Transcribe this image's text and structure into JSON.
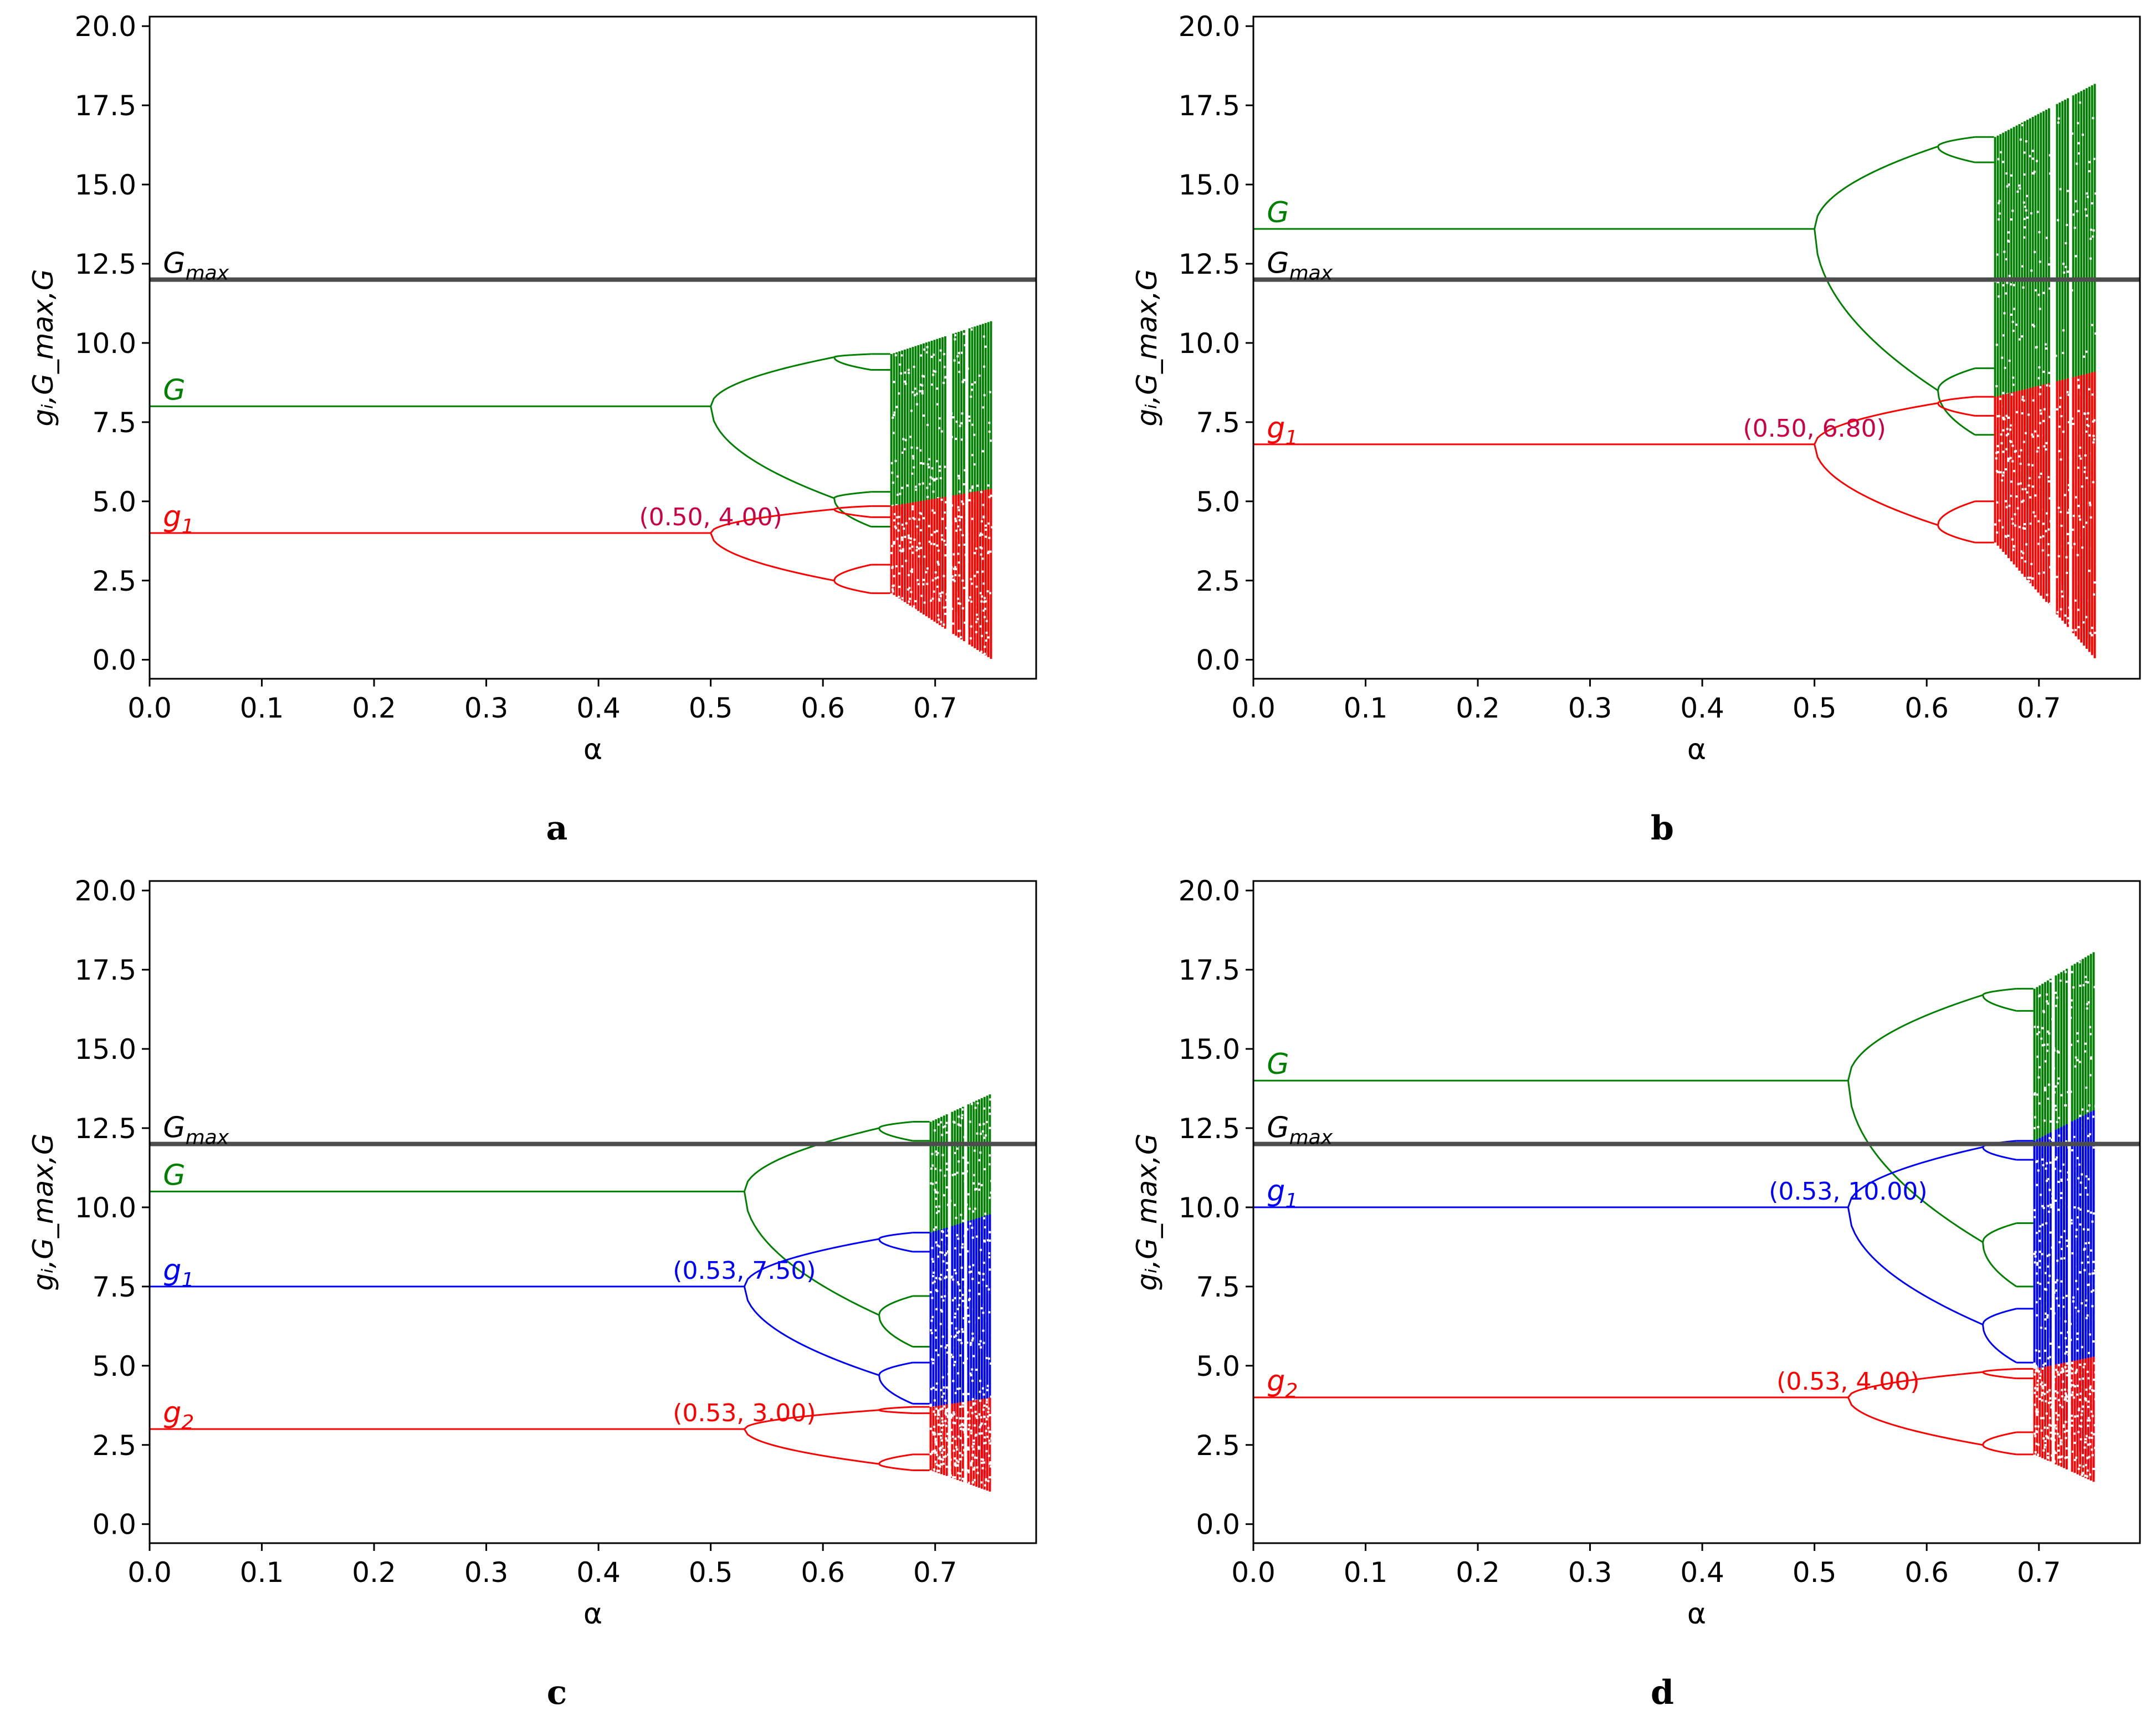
{
  "chart_data": [
    {
      "type": "line",
      "panel": "a",
      "xlabel": "α",
      "ylabel": "gᵢ,G_max,G",
      "xlim": [
        0.0,
        0.79
      ],
      "ylim": [
        -0.6,
        20.3
      ],
      "xticks": [
        "0.0",
        "0.1",
        "0.2",
        "0.3",
        "0.4",
        "0.5",
        "0.6",
        "0.7"
      ],
      "yticks": [
        "0.0",
        "2.5",
        "5.0",
        "7.5",
        "10.0",
        "12.5",
        "15.0",
        "17.5",
        "20.0"
      ],
      "gmax": {
        "value": 12.0,
        "label": "G",
        "label_sub": "max"
      },
      "series": [
        {
          "name": "G",
          "label": "G",
          "label_sub": "",
          "color": "#008000",
          "fixed": 8.0,
          "bif_x": 0.5,
          "period2": [
            9.55,
            5.1
          ],
          "x2": 0.61,
          "period4": [
            [
              9.65,
              9.15
            ],
            [
              5.3,
              4.2
            ]
          ],
          "x4": 0.643,
          "chaos_start": 0.66,
          "x_end": 0.75,
          "chaos_top": 10.7,
          "chaos_bot": 0.0
        },
        {
          "name": "g1",
          "label": "g",
          "label_sub": "1",
          "color": "#ff0000",
          "fixed": 4.0,
          "bif_x": 0.5,
          "period2": [
            4.75,
            2.5
          ],
          "x2": 0.61,
          "period4": [
            [
              4.85,
              4.5
            ],
            [
              3.0,
              2.1
            ]
          ],
          "x4": 0.643,
          "chaos_start": 0.66,
          "x_end": 0.75,
          "chaos_top": 5.4,
          "chaos_bot": 0.0
        }
      ],
      "annotations": [
        {
          "text": "(0.50, 4.00)",
          "x": 0.5,
          "y": 4.0,
          "color": "#cc0044"
        }
      ]
    },
    {
      "type": "line",
      "panel": "b",
      "xlabel": "α",
      "ylabel": "gᵢ,G_max,G",
      "xlim": [
        0.0,
        0.79
      ],
      "ylim": [
        -0.6,
        20.3
      ],
      "xticks": [
        "0.0",
        "0.1",
        "0.2",
        "0.3",
        "0.4",
        "0.5",
        "0.6",
        "0.7"
      ],
      "yticks": [
        "0.0",
        "2.5",
        "5.0",
        "7.5",
        "10.0",
        "12.5",
        "15.0",
        "17.5",
        "20.0"
      ],
      "gmax": {
        "value": 12.0,
        "label": "G",
        "label_sub": "max"
      },
      "series": [
        {
          "name": "G",
          "label": "G",
          "label_sub": "",
          "color": "#008000",
          "fixed": 13.6,
          "bif_x": 0.5,
          "period2": [
            16.2,
            8.5
          ],
          "x2": 0.61,
          "period4": [
            [
              16.5,
              15.7
            ],
            [
              9.2,
              7.1
            ]
          ],
          "x4": 0.643,
          "chaos_start": 0.66,
          "x_end": 0.75,
          "chaos_top": 18.2,
          "chaos_bot": 0.0
        },
        {
          "name": "g1",
          "label": "g",
          "label_sub": "1",
          "color": "#ff0000",
          "fixed": 6.8,
          "bif_x": 0.5,
          "period2": [
            8.1,
            4.25
          ],
          "x2": 0.61,
          "period4": [
            [
              8.3,
              7.7
            ],
            [
              5.0,
              3.7
            ]
          ],
          "x4": 0.643,
          "chaos_start": 0.66,
          "x_end": 0.75,
          "chaos_top": 9.1,
          "chaos_bot": 0.0
        }
      ],
      "annotations": [
        {
          "text": "(0.50, 6.80)",
          "x": 0.5,
          "y": 6.8,
          "color": "#cc0044"
        }
      ]
    },
    {
      "type": "line",
      "panel": "c",
      "xlabel": "α",
      "ylabel": "gᵢ,G_max,G",
      "xlim": [
        0.0,
        0.79
      ],
      "ylim": [
        -0.6,
        20.3
      ],
      "xticks": [
        "0.0",
        "0.1",
        "0.2",
        "0.3",
        "0.4",
        "0.5",
        "0.6",
        "0.7"
      ],
      "yticks": [
        "0.0",
        "2.5",
        "5.0",
        "7.5",
        "10.0",
        "12.5",
        "15.0",
        "17.5",
        "20.0"
      ],
      "gmax": {
        "value": 12.0,
        "label": "G",
        "label_sub": "max"
      },
      "series": [
        {
          "name": "G",
          "label": "G",
          "label_sub": "",
          "color": "#008000",
          "fixed": 10.5,
          "bif_x": 0.53,
          "period2": [
            12.5,
            6.6
          ],
          "x2": 0.65,
          "period4": [
            [
              12.7,
              12.1
            ],
            [
              7.2,
              5.6
            ]
          ],
          "x4": 0.68,
          "chaos_start": 0.695,
          "x_end": 0.75,
          "chaos_top": 13.6,
          "chaos_bot": 1.0
        },
        {
          "name": "g1",
          "label": "g",
          "label_sub": "1",
          "color": "#0000ff",
          "fixed": 7.5,
          "bif_x": 0.53,
          "period2": [
            9.0,
            4.7
          ],
          "x2": 0.65,
          "period4": [
            [
              9.2,
              8.6
            ],
            [
              5.1,
              3.8
            ]
          ],
          "x4": 0.68,
          "chaos_start": 0.695,
          "x_end": 0.75,
          "chaos_top": 9.8,
          "chaos_bot": 1.0
        },
        {
          "name": "g2",
          "label": "g",
          "label_sub": "2",
          "color": "#ff0000",
          "fixed": 3.0,
          "bif_x": 0.53,
          "period2": [
            3.6,
            1.9
          ],
          "x2": 0.65,
          "period4": [
            [
              3.7,
              3.5
            ],
            [
              2.2,
              1.7
            ]
          ],
          "x4": 0.68,
          "chaos_start": 0.695,
          "x_end": 0.75,
          "chaos_top": 4.0,
          "chaos_bot": 1.0
        }
      ],
      "annotations": [
        {
          "text": "(0.53, 7.50)",
          "x": 0.53,
          "y": 7.5,
          "color": "#0000ff"
        },
        {
          "text": "(0.53, 3.00)",
          "x": 0.53,
          "y": 3.0,
          "color": "#ff0000"
        }
      ]
    },
    {
      "type": "line",
      "panel": "d",
      "xlabel": "α",
      "ylabel": "gᵢ,G_max,G",
      "xlim": [
        0.0,
        0.79
      ],
      "ylim": [
        -0.6,
        20.3
      ],
      "xticks": [
        "0.0",
        "0.1",
        "0.2",
        "0.3",
        "0.4",
        "0.5",
        "0.6",
        "0.7"
      ],
      "yticks": [
        "0.0",
        "2.5",
        "5.0",
        "7.5",
        "10.0",
        "12.5",
        "15.0",
        "17.5",
        "20.0"
      ],
      "gmax": {
        "value": 12.0,
        "label": "G",
        "label_sub": "max"
      },
      "series": [
        {
          "name": "G",
          "label": "G",
          "label_sub": "",
          "color": "#008000",
          "fixed": 14.0,
          "bif_x": 0.53,
          "period2": [
            16.7,
            8.9
          ],
          "x2": 0.65,
          "period4": [
            [
              16.9,
              16.2
            ],
            [
              9.5,
              7.5
            ]
          ],
          "x4": 0.68,
          "chaos_start": 0.695,
          "x_end": 0.75,
          "chaos_top": 18.1,
          "chaos_bot": 1.3
        },
        {
          "name": "g1",
          "label": "g",
          "label_sub": "1",
          "color": "#0000ff",
          "fixed": 10.0,
          "bif_x": 0.53,
          "period2": [
            11.9,
            6.3
          ],
          "x2": 0.65,
          "period4": [
            [
              12.1,
              11.5
            ],
            [
              6.8,
              5.1
            ]
          ],
          "x4": 0.68,
          "chaos_start": 0.695,
          "x_end": 0.75,
          "chaos_top": 13.1,
          "chaos_bot": 1.3
        },
        {
          "name": "g2",
          "label": "g",
          "label_sub": "2",
          "color": "#ff0000",
          "fixed": 4.0,
          "bif_x": 0.53,
          "period2": [
            4.8,
            2.5
          ],
          "x2": 0.65,
          "period4": [
            [
              4.9,
              4.6
            ],
            [
              2.9,
              2.2
            ]
          ],
          "x4": 0.68,
          "chaos_start": 0.695,
          "x_end": 0.75,
          "chaos_top": 5.3,
          "chaos_bot": 1.3
        }
      ],
      "annotations": [
        {
          "text": "(0.53, 10.00)",
          "x": 0.53,
          "y": 10.0,
          "color": "#0000ff"
        },
        {
          "text": "(0.53, 4.00)",
          "x": 0.53,
          "y": 4.0,
          "color": "#ff0000"
        }
      ]
    }
  ],
  "captions": {
    "a": "a",
    "b": "b",
    "c": "c",
    "d": "d"
  }
}
